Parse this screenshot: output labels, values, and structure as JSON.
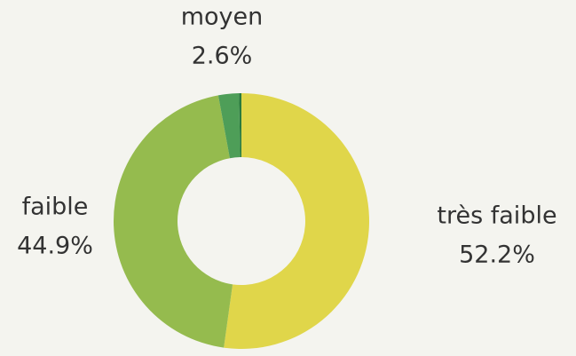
{
  "chart_data": {
    "type": "donut",
    "categories": [
      "très faible",
      "faible",
      "moyen",
      null
    ],
    "values": [
      52.2,
      44.9,
      2.6,
      0.3
    ],
    "value_labels": [
      "52.2%",
      "44.9%",
      "2.6%",
      null
    ],
    "colors": [
      "#e0d64a",
      "#95bb4e",
      "#4e9e58",
      "#2a7a3e"
    ]
  }
}
